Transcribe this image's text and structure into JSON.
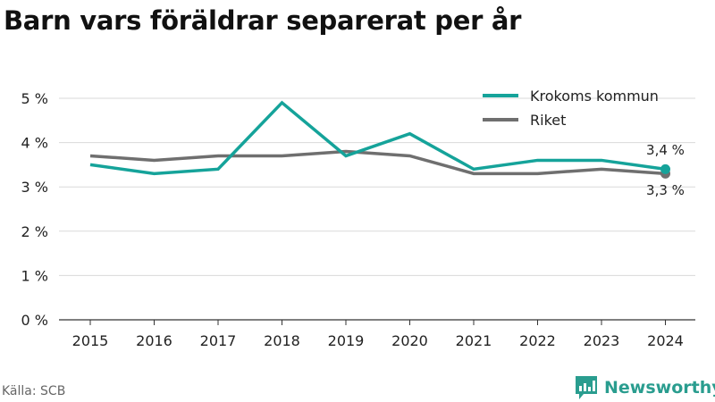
{
  "title": "Barn vars föräldrar separerat per år",
  "source": "Källa: SCB",
  "brand": {
    "name": "Newsworthy",
    "icon": "bar-chart-icon",
    "color": "#2a9d8f"
  },
  "colors": {
    "krokom": "#15a39a",
    "riket": "#6f6f6f",
    "grid": "#d9d9d9",
    "axis": "#333333"
  },
  "chart_data": {
    "type": "line",
    "title": "Barn vars föräldrar separerat per år",
    "xlabel": "",
    "ylabel": "",
    "x": [
      "2015",
      "2016",
      "2017",
      "2018",
      "2019",
      "2020",
      "2021",
      "2022",
      "2023",
      "2024"
    ],
    "ylim": [
      0,
      5
    ],
    "y_ticks": [
      "0 %",
      "1 %",
      "2 %",
      "3 %",
      "4 %",
      "5 %"
    ],
    "grid": true,
    "legend_position": "top-right",
    "series": [
      {
        "name": "Krokoms kommun",
        "values": [
          3.5,
          3.3,
          3.4,
          4.9,
          3.7,
          4.2,
          3.4,
          3.6,
          3.6,
          3.4
        ],
        "end_label": "3,4 %"
      },
      {
        "name": "Riket",
        "values": [
          3.7,
          3.6,
          3.7,
          3.7,
          3.8,
          3.7,
          3.3,
          3.3,
          3.4,
          3.3
        ],
        "end_label": "3,3 %"
      }
    ]
  }
}
